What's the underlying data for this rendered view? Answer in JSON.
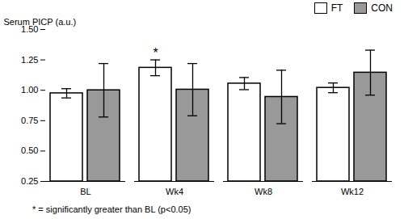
{
  "chart_data": {
    "type": "bar",
    "ylabel": "Serum PICP (a.u.)",
    "categories": [
      "BL",
      "Wk4",
      "Wk8",
      "Wk12"
    ],
    "series": [
      {
        "name": "FT",
        "color": "#ffffff",
        "values": [
          0.975,
          1.185,
          1.055,
          1.02
        ],
        "errors": [
          0.038,
          0.065,
          0.05,
          0.04
        ]
      },
      {
        "name": "CON",
        "color": "#999999",
        "values": [
          1.0,
          1.005,
          0.945,
          1.145
        ],
        "errors": [
          0.22,
          0.215,
          0.22,
          0.185
        ]
      }
    ],
    "edge_color": "#000000",
    "ylim": [
      0.25,
      1.5
    ],
    "yticks": [
      0.25,
      {
        "value": 0.5,
        "label": "0.50"
      },
      {
        "value": 0.75,
        "label": "0.75"
      },
      {
        "value": 1.0,
        "label": "1.00"
      },
      {
        "value": 1.25,
        "label": "1.25"
      },
      {
        "value": 1.5,
        "label": "1.50"
      }
    ],
    "annotations": [
      {
        "text": "*",
        "category": "Wk4",
        "series": "FT"
      }
    ],
    "caption": "* = significantly greater than BL (p<0.05)",
    "legend": "upper right",
    "grid": false
  }
}
